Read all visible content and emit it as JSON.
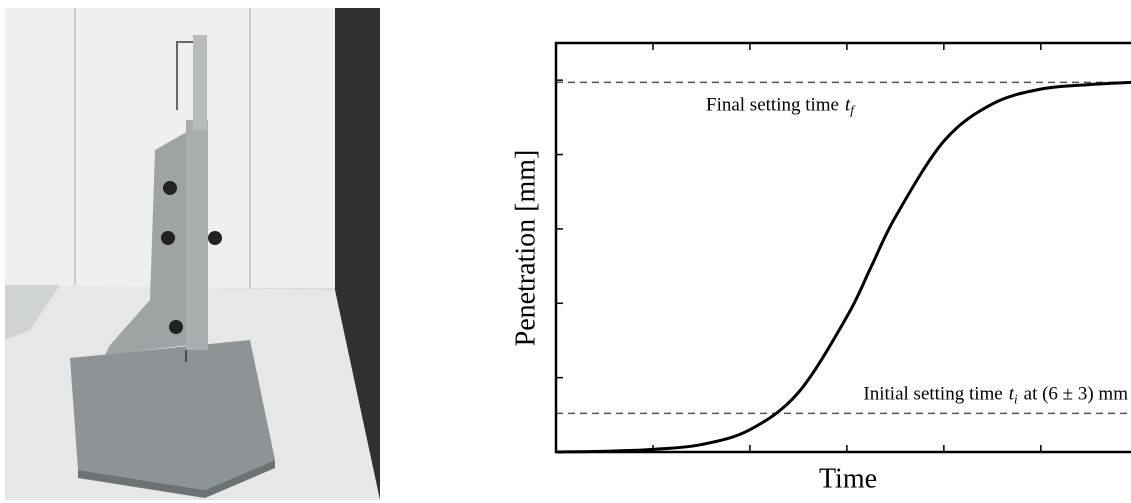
{
  "chart_data": {
    "type": "line",
    "x_label": "Time",
    "y_label": "Penetration [mm]",
    "x": [
      0,
      0.5,
      1.0,
      1.5,
      2.0,
      2.5,
      3.0,
      3.25,
      3.5,
      4.0,
      4.5,
      5.0,
      5.5,
      5.93
    ],
    "values": [
      0.0,
      0.01,
      0.035,
      0.1,
      0.3,
      0.8,
      1.82,
      2.49,
      3.16,
      4.18,
      4.68,
      4.88,
      4.94,
      4.97
    ],
    "color": "#000000",
    "xlim": [
      0,
      5.93
    ],
    "ylim": [
      0,
      5.5
    ],
    "xticks": [
      1,
      2,
      3,
      4,
      5
    ],
    "yticks": [
      1,
      2,
      3,
      4,
      5
    ],
    "annotations": [
      {
        "text": "Final setting time",
        "symbol": "t",
        "subscript": "f",
        "y": 4.97
      },
      {
        "text": "Initial setting time",
        "symbol": "t",
        "subscript": "i",
        "tail": "at (6 ± 3) mm",
        "y": 0.52
      }
    ]
  }
}
